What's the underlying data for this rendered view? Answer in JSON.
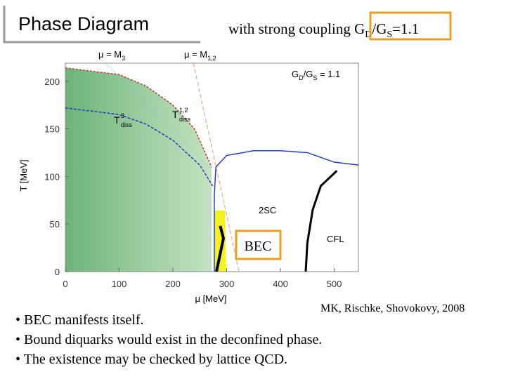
{
  "title": "Phase Diagram",
  "subtitle": "with strong coupling",
  "coupling_ratio": [
    "G",
    "D",
    "/G",
    "S",
    "=1.1"
  ],
  "citation": "MK, Rischke, Shovokovy, 2008",
  "bullets": [
    "• BEC manifests itself.",
    "• Bound diquarks would exist in the deconfined phase.",
    "• The existence may be checked by lattice QCD."
  ],
  "chart_data": {
    "type": "line",
    "x_label": "μ [MeV]",
    "y_label": "T [MeV]",
    "xlim": [
      0,
      545
    ],
    "ylim": [
      0,
      219
    ],
    "xticks": [
      0,
      100,
      200,
      300,
      400,
      500
    ],
    "yticks": [
      0,
      50,
      100,
      150,
      200
    ],
    "annotations": {
      "ratio": [
        "G",
        "D",
        "/G",
        "S",
        " = 1.1"
      ],
      "t3": [
        "T",
        "3",
        "diss"
      ],
      "t12": [
        "T",
        "1,2",
        "diss"
      ],
      "mu_m3": [
        "μ = M",
        "3"
      ],
      "mu_m12": [
        "μ = M",
        "1,2"
      ],
      "two_sc": "2SC",
      "cfl": "CFL",
      "bec": "BEC"
    },
    "series": [
      {
        "color": "#c0392b",
        "dash": "3,2",
        "width": 1.5,
        "x": [
          0,
          100,
          150,
          200,
          240,
          272
        ],
        "values": [
          214,
          207,
          195,
          175,
          150,
          110
        ]
      },
      {
        "color": "#1f3fbf",
        "dash": "4,2",
        "width": 1.5,
        "x": [
          0,
          100,
          150,
          200,
          250,
          274
        ],
        "values": [
          172,
          165,
          155,
          138,
          112,
          90
        ]
      },
      {
        "color": "#1f3fbf",
        "dash": "",
        "width": 1.5,
        "x": [
          277,
          277,
          280,
          300,
          350,
          400,
          450,
          500,
          545
        ],
        "values": [
          0,
          80,
          110,
          122,
          127,
          127,
          125,
          115,
          112
        ]
      },
      {
        "color": "#000000",
        "dash": "",
        "width": 3,
        "x": [
          447,
          450,
          460,
          475,
          505
        ],
        "values": [
          0,
          30,
          65,
          90,
          106
        ]
      },
      {
        "color": "#000000",
        "dash": "",
        "width": 4,
        "x": [
          281,
          294,
          288
        ],
        "values": [
          0,
          35,
          48
        ]
      },
      {
        "color": "#7fc8e8",
        "dash": "2,2",
        "width": 1,
        "x": [
          75,
          270
        ],
        "values": [
          219,
          108
        ]
      },
      {
        "color": "#e8a070",
        "dash": "6,3",
        "width": 1,
        "x": [
          238,
          323
        ],
        "values": [
          219,
          0
        ]
      }
    ]
  }
}
